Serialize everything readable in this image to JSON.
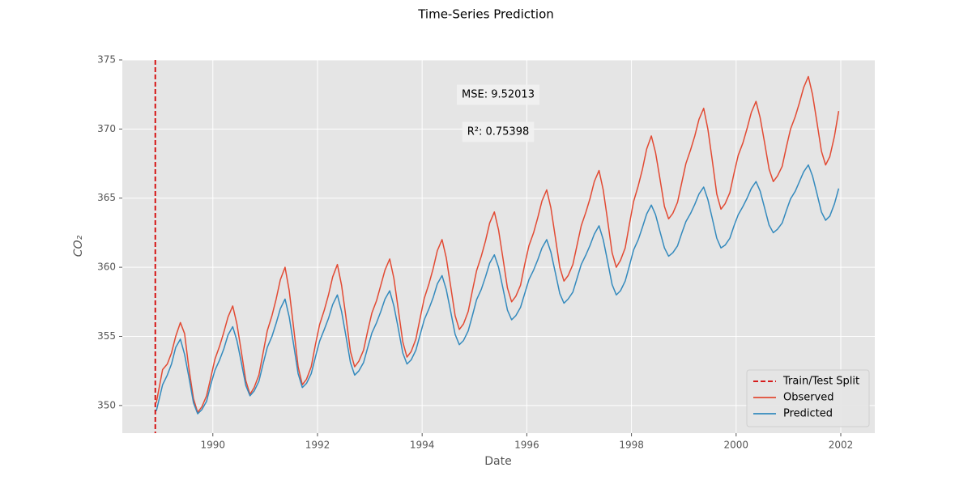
{
  "chart_data": {
    "type": "line",
    "title": "Time-Series Prediction",
    "xlabel": "Date",
    "ylabel": "CO₂",
    "xlim": [
      1988.27,
      2002.65
    ],
    "ylim": [
      348.0,
      375.0
    ],
    "xticks": [
      1990,
      1992,
      1994,
      1996,
      1998,
      2000,
      2002
    ],
    "yticks": [
      350,
      355,
      360,
      365,
      370,
      375
    ],
    "grid": true,
    "legend": "lower right",
    "vline": {
      "name": "Train/Test Split",
      "x": 1988.9,
      "color": "#d40000"
    },
    "annotations": [
      "MSE: 9.52013",
      "R²: 0.75398"
    ],
    "x": [
      1988.92,
      1989.04,
      1989.13,
      1989.21,
      1989.29,
      1989.38,
      1989.46,
      1989.54,
      1989.63,
      1989.71,
      1989.79,
      1989.88,
      1989.96,
      1990.04,
      1990.13,
      1990.21,
      1990.29,
      1990.38,
      1990.46,
      1990.54,
      1990.63,
      1990.71,
      1990.79,
      1990.88,
      1990.96,
      1991.04,
      1991.13,
      1991.21,
      1991.29,
      1991.38,
      1991.46,
      1991.54,
      1991.63,
      1991.71,
      1991.79,
      1991.88,
      1991.96,
      1992.04,
      1992.13,
      1992.21,
      1992.29,
      1992.38,
      1992.46,
      1992.54,
      1992.63,
      1992.71,
      1992.79,
      1992.88,
      1992.96,
      1993.04,
      1993.13,
      1993.21,
      1993.29,
      1993.38,
      1993.46,
      1993.54,
      1993.63,
      1993.71,
      1993.79,
      1993.88,
      1993.96,
      1994.04,
      1994.13,
      1994.21,
      1994.29,
      1994.38,
      1994.46,
      1994.54,
      1994.63,
      1994.71,
      1994.79,
      1994.88,
      1994.96,
      1995.04,
      1995.13,
      1995.21,
      1995.29,
      1995.38,
      1995.46,
      1995.54,
      1995.63,
      1995.71,
      1995.79,
      1995.88,
      1995.96,
      1996.04,
      1996.13,
      1996.21,
      1996.29,
      1996.38,
      1996.46,
      1996.54,
      1996.63,
      1996.71,
      1996.79,
      1996.88,
      1996.96,
      1997.04,
      1997.13,
      1997.21,
      1997.29,
      1997.38,
      1997.46,
      1997.54,
      1997.63,
      1997.71,
      1997.79,
      1997.88,
      1997.96,
      1998.04,
      1998.13,
      1998.21,
      1998.29,
      1998.38,
      1998.46,
      1998.54,
      1998.63,
      1998.71,
      1998.79,
      1998.88,
      1998.96,
      1999.04,
      1999.13,
      1999.21,
      1999.29,
      1999.38,
      1999.46,
      1999.54,
      1999.63,
      1999.71,
      1999.79,
      1999.88,
      1999.96,
      2000.04,
      2000.13,
      2000.21,
      2000.29,
      2000.38,
      2000.46,
      2000.54,
      2000.63,
      2000.71,
      2000.79,
      2000.88,
      2000.96,
      2001.04,
      2001.13,
      2001.21,
      2001.29,
      2001.38,
      2001.46,
      2001.54,
      2001.63,
      2001.71,
      2001.79,
      2001.88,
      2001.96
    ],
    "series": [
      {
        "name": "Observed",
        "color": "#e24a33",
        "values": [
          350.2,
          352.6,
          353.0,
          353.8,
          355.0,
          356.0,
          355.2,
          352.75,
          350.5,
          349.5,
          349.9,
          350.7,
          352.0,
          353.35,
          354.3,
          355.3,
          356.4,
          357.2,
          355.9,
          354.0,
          351.8,
          350.8,
          351.3,
          352.2,
          353.8,
          355.4,
          356.5,
          357.7,
          359.1,
          360.0,
          358.3,
          355.75,
          352.8,
          351.5,
          351.9,
          352.8,
          354.4,
          355.85,
          356.9,
          358.0,
          359.3,
          360.2,
          358.7,
          356.5,
          353.9,
          352.8,
          353.2,
          354.0,
          355.4,
          356.7,
          357.6,
          358.7,
          359.8,
          360.6,
          359.2,
          357.05,
          354.6,
          353.5,
          353.9,
          354.8,
          356.3,
          357.75,
          358.8,
          359.9,
          361.2,
          362.0,
          360.7,
          358.75,
          356.5,
          355.5,
          355.9,
          356.8,
          358.3,
          359.75,
          360.8,
          361.9,
          363.2,
          364.0,
          362.7,
          360.75,
          358.5,
          357.5,
          357.9,
          358.7,
          360.2,
          361.55,
          362.5,
          363.6,
          364.8,
          365.6,
          364.3,
          362.3,
          360.0,
          359.0,
          359.4,
          360.2,
          361.6,
          363.0,
          364.0,
          365.0,
          366.2,
          367.0,
          365.6,
          363.5,
          361.05,
          360.0,
          360.5,
          361.4,
          363.1,
          364.75,
          365.9,
          367.1,
          368.55,
          369.5,
          368.3,
          366.5,
          364.4,
          363.5,
          363.9,
          364.7,
          366.1,
          367.5,
          368.5,
          369.5,
          370.7,
          371.5,
          370.0,
          367.85,
          365.3,
          364.2,
          364.6,
          365.4,
          366.8,
          368.1,
          369.0,
          370.05,
          371.2,
          372.0,
          370.8,
          369.1,
          367.1,
          366.2,
          366.6,
          367.3,
          368.7,
          370.0,
          370.9,
          371.9,
          373.0,
          373.8,
          372.5,
          370.6,
          368.4,
          367.4,
          368.0,
          369.5,
          371.3
        ]
      },
      {
        "name": "Predicted",
        "color": "#348abd",
        "values": [
          349.6,
          351.5,
          352.2,
          353.0,
          354.2,
          354.8,
          353.7,
          352.1,
          350.2,
          349.4,
          349.7,
          350.3,
          351.5,
          352.55,
          353.3,
          354.1,
          355.1,
          355.7,
          354.7,
          353.2,
          351.45,
          350.7,
          351.05,
          351.75,
          353.0,
          354.2,
          355.0,
          355.95,
          357.0,
          357.7,
          356.4,
          354.5,
          352.3,
          351.3,
          351.6,
          352.3,
          353.5,
          354.65,
          355.5,
          356.3,
          357.3,
          358.0,
          356.8,
          355.1,
          353.1,
          352.2,
          352.5,
          353.1,
          354.2,
          355.25,
          356.0,
          356.8,
          357.7,
          358.3,
          357.2,
          355.65,
          353.8,
          353.0,
          353.3,
          354.0,
          355.1,
          356.2,
          357.0,
          357.8,
          358.8,
          359.4,
          358.4,
          356.9,
          355.15,
          354.4,
          354.7,
          355.4,
          356.5,
          357.65,
          358.4,
          359.3,
          360.3,
          360.9,
          360.0,
          358.55,
          356.9,
          356.2,
          356.5,
          357.1,
          358.1,
          359.1,
          359.8,
          360.55,
          361.4,
          362.0,
          361.1,
          359.7,
          358.1,
          357.4,
          357.7,
          358.2,
          359.2,
          360.2,
          360.9,
          361.6,
          362.4,
          363.0,
          362.0,
          360.5,
          358.75,
          358.0,
          358.3,
          359.0,
          360.1,
          361.25,
          362.0,
          362.9,
          363.85,
          364.5,
          363.8,
          362.65,
          361.4,
          360.8,
          361.05,
          361.55,
          362.45,
          363.3,
          363.9,
          364.55,
          365.3,
          365.8,
          364.9,
          363.6,
          362.1,
          361.4,
          361.6,
          362.1,
          363.0,
          363.8,
          364.4,
          365.0,
          365.7,
          366.2,
          365.5,
          364.35,
          363.05,
          362.5,
          362.75,
          363.2,
          364.1,
          364.95,
          365.5,
          366.2,
          366.9,
          367.4,
          366.6,
          365.4,
          364.0,
          363.4,
          363.7,
          364.6,
          365.7
        ]
      }
    ]
  }
}
